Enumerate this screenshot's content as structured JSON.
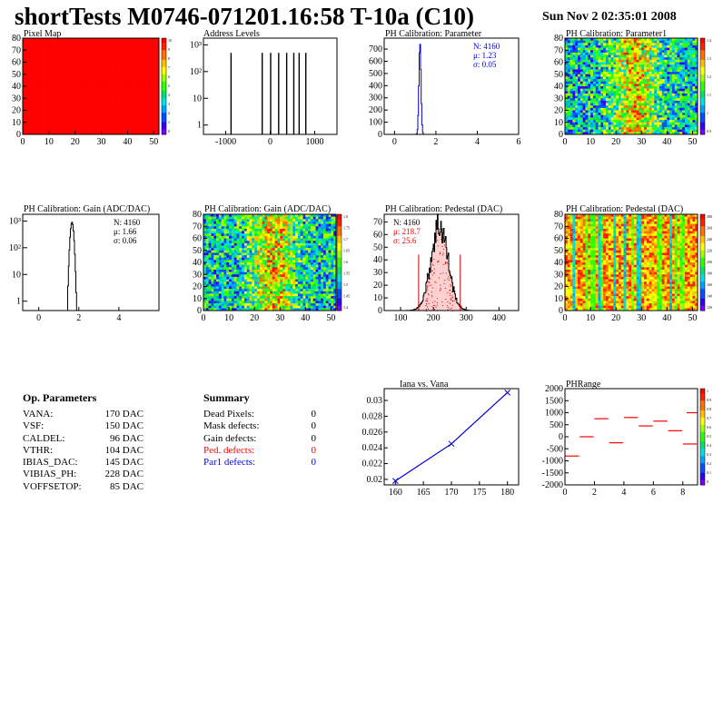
{
  "header": {
    "title": "shortTests M0746-071201.16:58 T-10a (C10)",
    "date": "Sun Nov  2 02:35:01 2008"
  },
  "op_parameters": {
    "title": "Op. Parameters",
    "rows": [
      {
        "name": "VANA:",
        "value": "170 DAC"
      },
      {
        "name": "VSF:",
        "value": "150 DAC"
      },
      {
        "name": "CALDEL:",
        "value": "96 DAC"
      },
      {
        "name": "VTHR:",
        "value": "104 DAC"
      },
      {
        "name": "IBIAS_DAC:",
        "value": "145 DAC"
      },
      {
        "name": "VIBIAS_PH:",
        "value": "228 DAC"
      },
      {
        "name": "VOFFSETOP:",
        "value": "85 DAC"
      }
    ]
  },
  "summary": {
    "title": "Summary",
    "rows": [
      {
        "name": "Dead Pixels:",
        "value": "0",
        "color": "#000000"
      },
      {
        "name": "Mask defects:",
        "value": "0",
        "color": "#000000"
      },
      {
        "name": "Gain defects:",
        "value": "0",
        "color": "#000000"
      },
      {
        "name": "Ped. defects:",
        "value": "0",
        "color": "#ff0000"
      },
      {
        "name": "Par1 defects:",
        "value": "0",
        "color": "#0000ff"
      }
    ]
  },
  "chart_data": [
    {
      "id": "pixel-map",
      "type": "heatmap",
      "title": "Pixel Map",
      "x_ticks": [
        "0",
        "10",
        "20",
        "30",
        "40",
        "50"
      ],
      "y_ticks": [
        "0",
        "10",
        "20",
        "30",
        "40",
        "50",
        "60",
        "70",
        "80"
      ],
      "xlim": [
        0,
        52
      ],
      "ylim": [
        0,
        80
      ],
      "fill": "uniform",
      "cell_value": 10,
      "palette_ticks": [
        "10",
        "9",
        "8",
        "7",
        "6",
        "5",
        "4",
        "3",
        "2",
        "1",
        "0"
      ]
    },
    {
      "id": "address-levels",
      "type": "histogram",
      "title": "Address Levels",
      "x_ticks": [
        "-1000",
        "0",
        "1000"
      ],
      "y_ticks": [
        "10³",
        "10²",
        "10",
        "1"
      ],
      "xlim": [
        -1500,
        1500
      ],
      "log_y": true,
      "peaks": [
        {
          "x": -880,
          "count": 500
        },
        {
          "x": -180,
          "count": 500
        },
        {
          "x": 10,
          "count": 500
        },
        {
          "x": 190,
          "count": 500
        },
        {
          "x": 370,
          "count": 500
        },
        {
          "x": 530,
          "count": 500
        },
        {
          "x": 650,
          "count": 500
        },
        {
          "x": 800,
          "count": 500
        }
      ]
    },
    {
      "id": "ph-calibration-parameter",
      "type": "histogram",
      "title": "PH Calibration: Parameter",
      "x_ticks": [
        "0",
        "2",
        "4",
        "6"
      ],
      "y_ticks": [
        "0",
        "100",
        "200",
        "300",
        "400",
        "500",
        "600",
        "700"
      ],
      "xlim": [
        -0.5,
        6
      ],
      "ylim": [
        0,
        790
      ],
      "stats": [
        "N: 4160",
        "μ: 1.23",
        "σ: 0.05"
      ],
      "stats_color": "#0000cc",
      "gauss": {
        "mean": 1.23,
        "sigma": 0.05,
        "peak": 750
      }
    },
    {
      "id": "ph-calibration-parameter1",
      "type": "heatmap",
      "title": "PH Calibration: Parameter1",
      "x_ticks": [
        "0",
        "10",
        "20",
        "30",
        "40",
        "50"
      ],
      "y_ticks": [
        "0",
        "10",
        "20",
        "30",
        "40",
        "50",
        "60",
        "70",
        "80"
      ],
      "xlim": [
        0,
        52
      ],
      "ylim": [
        0,
        80
      ],
      "fill": "noise",
      "palette_ticks": [
        "1.4",
        "1.3",
        "1.2",
        "1.1",
        "1",
        "0.9"
      ]
    },
    {
      "id": "ph-calibration-gain-hist",
      "type": "histogram",
      "title": "PH Calibration: Gain (ADC/DAC)",
      "x_ticks": [
        "0",
        "2",
        "4"
      ],
      "y_ticks": [
        "10³",
        "10²",
        "10",
        "1"
      ],
      "xlim": [
        -0.8,
        6
      ],
      "log_y": true,
      "stats": [
        "N: 4160",
        "μ: 1.66",
        "σ: 0.06"
      ],
      "stats_color": "#000000",
      "gauss": {
        "mean": 1.66,
        "sigma": 0.06,
        "peak": 900
      }
    },
    {
      "id": "ph-calibration-gain-map",
      "type": "heatmap",
      "title": "PH Calibration: Gain (ADC/DAC)",
      "x_ticks": [
        "0",
        "10",
        "20",
        "30",
        "40",
        "50"
      ],
      "y_ticks": [
        "0",
        "10",
        "20",
        "30",
        "40",
        "50",
        "60",
        "70",
        "80"
      ],
      "xlim": [
        0,
        52
      ],
      "ylim": [
        0,
        80
      ],
      "fill": "noise",
      "palette_ticks": [
        "1.8",
        "1.75",
        "1.7",
        "1.65",
        "1.6",
        "1.55",
        "1.5",
        "1.45",
        "1.4"
      ]
    },
    {
      "id": "ph-calibration-pedestal-hist",
      "type": "histogram",
      "title": "PH Calibration: Pedestal (DAC)",
      "x_ticks": [
        "100",
        "200",
        "300",
        "400"
      ],
      "y_ticks": [
        "0",
        "10",
        "20",
        "30",
        "40",
        "50",
        "60",
        "70"
      ],
      "xlim": [
        50,
        460
      ],
      "ylim": [
        0,
        76
      ],
      "stats": [
        "N: 4160",
        "μ: 218.7",
        "σ: 25.6"
      ],
      "stats_colors": [
        "#000000",
        "#ff0000",
        "#ff0000"
      ],
      "gauss": {
        "mean": 218.7,
        "sigma": 25.6,
        "peak": 68
      },
      "cut_lines": [
        155,
        282
      ]
    },
    {
      "id": "ph-calibration-pedestal-map",
      "type": "heatmap",
      "title": "PH Calibration: Pedestal (DAC)",
      "x_ticks": [
        "0",
        "10",
        "20",
        "30",
        "40",
        "50"
      ],
      "y_ticks": [
        "0",
        "10",
        "20",
        "30",
        "40",
        "50",
        "60",
        "70",
        "80"
      ],
      "xlim": [
        0,
        52
      ],
      "ylim": [
        0,
        80
      ],
      "fill": "columns",
      "palette_ticks": [
        "280",
        "260",
        "240",
        "220",
        "200",
        "180",
        "160",
        "140",
        "120"
      ]
    },
    {
      "id": "iana-vs-vana",
      "type": "line",
      "title": "Iana vs. Vana",
      "x_ticks": [
        "160",
        "165",
        "170",
        "175",
        "180"
      ],
      "y_ticks": [
        "0.02",
        "0.022",
        "0.024",
        "0.026",
        "0.028",
        "0.03"
      ],
      "xlim": [
        158,
        182
      ],
      "ylim": [
        0.0193,
        0.0315
      ],
      "x": [
        160,
        170,
        180
      ],
      "y": [
        0.0198,
        0.0245,
        0.031
      ]
    },
    {
      "id": "ph-range",
      "type": "scatter",
      "title": "PHRange",
      "x_ticks": [
        "0",
        "2",
        "4",
        "6",
        "8"
      ],
      "y_ticks": [
        "2000",
        "1500",
        "1000",
        "500",
        "0",
        "-500",
        "-1000",
        "-1500",
        "-2000"
      ],
      "xlim": [
        0,
        9
      ],
      "ylim": [
        -2000,
        2000
      ],
      "x": [
        0,
        1,
        2,
        3,
        4,
        5,
        6,
        7,
        8
      ],
      "y": [
        -800,
        0,
        750,
        -250,
        800,
        450,
        650,
        250,
        -300
      ],
      "extra_point": {
        "x": 8.5,
        "y": 1000
      },
      "palette_ticks": [
        "1",
        "0.9",
        "0.8",
        "0.7",
        "0.6",
        "0.5",
        "0.4",
        "0.3",
        "0.2",
        "0.1",
        "0"
      ]
    }
  ]
}
